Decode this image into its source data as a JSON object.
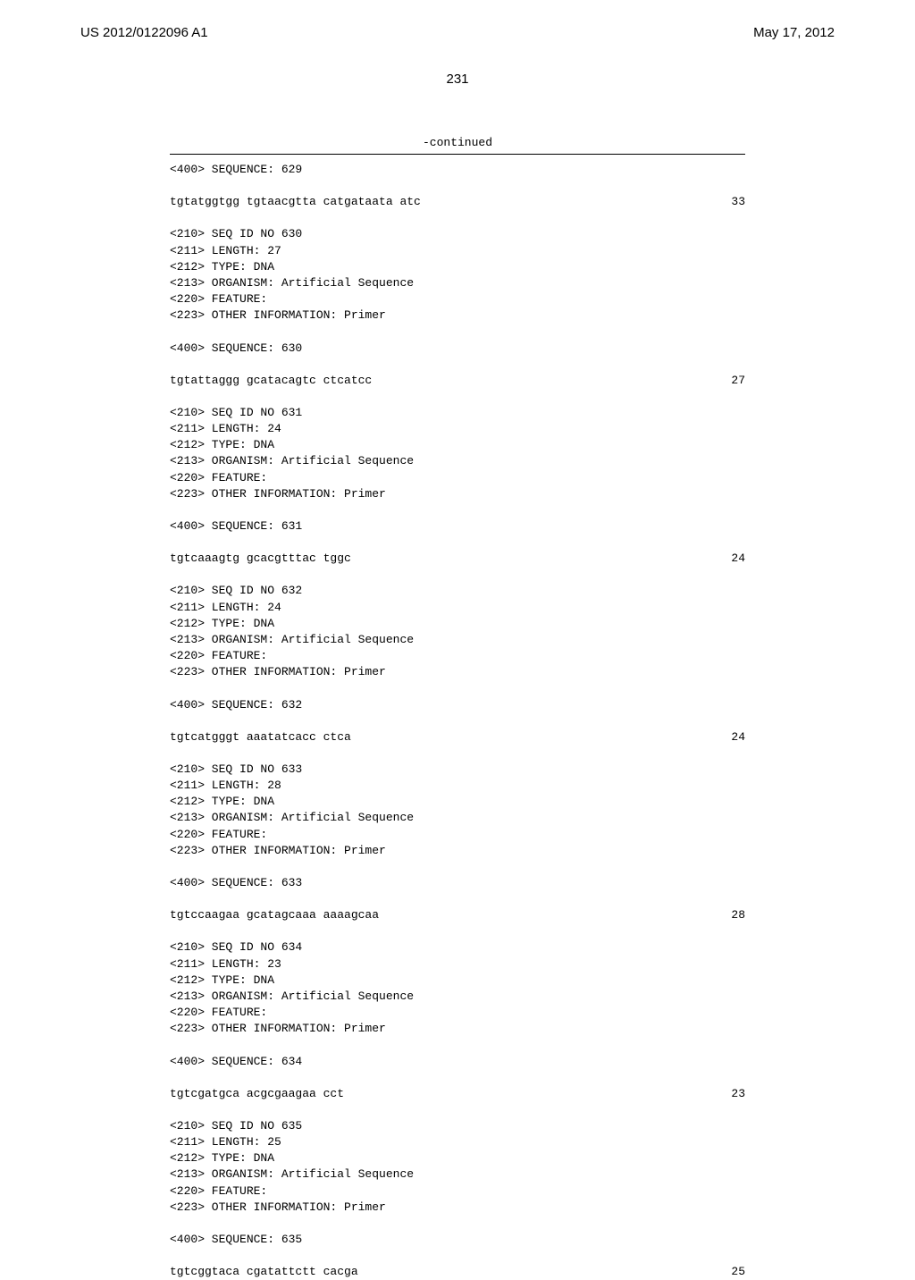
{
  "header": {
    "left": "US 2012/0122096 A1",
    "right": "May 17, 2012"
  },
  "page_number": "231",
  "continued": "-continued",
  "entries": [
    {
      "pre_label": "<400> SEQUENCE: 629",
      "sequence": "tgtatggtgg tgtaacgtta catgataata atc",
      "seqnum": "33"
    },
    {
      "features": [
        "<210> SEQ ID NO 630",
        "<211> LENGTH: 27",
        "<212> TYPE: DNA",
        "<213> ORGANISM: Artificial Sequence",
        "<220> FEATURE:",
        "<223> OTHER INFORMATION: Primer"
      ],
      "seq_label": "<400> SEQUENCE: 630",
      "sequence": "tgtattaggg gcatacagtc ctcatcc",
      "seqnum": "27"
    },
    {
      "features": [
        "<210> SEQ ID NO 631",
        "<211> LENGTH: 24",
        "<212> TYPE: DNA",
        "<213> ORGANISM: Artificial Sequence",
        "<220> FEATURE:",
        "<223> OTHER INFORMATION: Primer"
      ],
      "seq_label": "<400> SEQUENCE: 631",
      "sequence": "tgtcaaagtg gcacgtttac tggc",
      "seqnum": "24"
    },
    {
      "features": [
        "<210> SEQ ID NO 632",
        "<211> LENGTH: 24",
        "<212> TYPE: DNA",
        "<213> ORGANISM: Artificial Sequence",
        "<220> FEATURE:",
        "<223> OTHER INFORMATION: Primer"
      ],
      "seq_label": "<400> SEQUENCE: 632",
      "sequence": "tgtcatgggt aaatatcacc ctca",
      "seqnum": "24"
    },
    {
      "features": [
        "<210> SEQ ID NO 633",
        "<211> LENGTH: 28",
        "<212> TYPE: DNA",
        "<213> ORGANISM: Artificial Sequence",
        "<220> FEATURE:",
        "<223> OTHER INFORMATION: Primer"
      ],
      "seq_label": "<400> SEQUENCE: 633",
      "sequence": "tgtccaagaa gcatagcaaa aaaagcaa",
      "seqnum": "28"
    },
    {
      "features": [
        "<210> SEQ ID NO 634",
        "<211> LENGTH: 23",
        "<212> TYPE: DNA",
        "<213> ORGANISM: Artificial Sequence",
        "<220> FEATURE:",
        "<223> OTHER INFORMATION: Primer"
      ],
      "seq_label": "<400> SEQUENCE: 634",
      "sequence": "tgtcgatgca acgcgaagaa cct",
      "seqnum": "23"
    },
    {
      "features": [
        "<210> SEQ ID NO 635",
        "<211> LENGTH: 25",
        "<212> TYPE: DNA",
        "<213> ORGANISM: Artificial Sequence",
        "<220> FEATURE:",
        "<223> OTHER INFORMATION: Primer"
      ],
      "seq_label": "<400> SEQUENCE: 635",
      "sequence": "tgtcggtaca cgatattctt cacga",
      "seqnum": "25"
    }
  ]
}
